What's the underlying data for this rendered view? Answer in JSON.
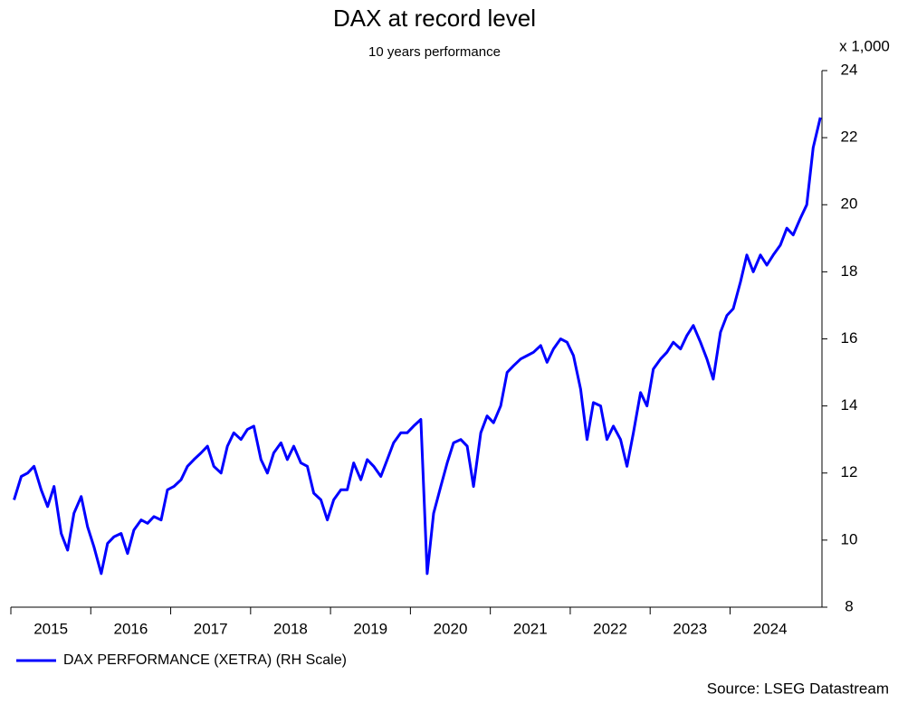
{
  "chart_data": {
    "type": "line",
    "title": "DAX at record level",
    "subtitle": "10 years performance",
    "y_unit_label": "x 1,000",
    "source": "Source: LSEG Datastream",
    "x": [
      2015.04,
      2015.13,
      2015.21,
      2015.29,
      2015.38,
      2015.46,
      2015.54,
      2015.63,
      2015.71,
      2015.79,
      2015.88,
      2015.96,
      2016.04,
      2016.13,
      2016.21,
      2016.29,
      2016.38,
      2016.46,
      2016.54,
      2016.63,
      2016.71,
      2016.79,
      2016.88,
      2016.96,
      2017.04,
      2017.13,
      2017.21,
      2017.29,
      2017.38,
      2017.46,
      2017.54,
      2017.63,
      2017.71,
      2017.79,
      2017.88,
      2017.96,
      2018.04,
      2018.13,
      2018.21,
      2018.29,
      2018.38,
      2018.46,
      2018.54,
      2018.63,
      2018.71,
      2018.79,
      2018.88,
      2018.96,
      2019.04,
      2019.13,
      2019.21,
      2019.29,
      2019.38,
      2019.46,
      2019.54,
      2019.63,
      2019.71,
      2019.79,
      2019.88,
      2019.96,
      2020.04,
      2020.13,
      2020.21,
      2020.29,
      2020.38,
      2020.46,
      2020.54,
      2020.63,
      2020.71,
      2020.79,
      2020.88,
      2020.96,
      2021.04,
      2021.13,
      2021.21,
      2021.29,
      2021.38,
      2021.46,
      2021.54,
      2021.63,
      2021.71,
      2021.79,
      2021.88,
      2021.96,
      2022.04,
      2022.13,
      2022.21,
      2022.29,
      2022.38,
      2022.46,
      2022.54,
      2022.63,
      2022.71,
      2022.79,
      2022.88,
      2022.96,
      2023.04,
      2023.13,
      2023.21,
      2023.29,
      2023.38,
      2023.46,
      2023.54,
      2023.63,
      2023.71,
      2023.79,
      2023.88,
      2023.96,
      2024.04,
      2024.13,
      2024.21,
      2024.29,
      2024.38,
      2024.46,
      2024.54,
      2024.63,
      2024.71,
      2024.79,
      2024.88,
      2024.96,
      2025.04,
      2025.13
    ],
    "series": [
      {
        "name": "DAX PERFORMANCE (XETRA) (RH Scale)",
        "color": "#0000ff",
        "values": [
          11.2,
          11.9,
          12.0,
          12.2,
          11.5,
          11.0,
          11.6,
          10.2,
          9.7,
          10.8,
          11.3,
          10.4,
          9.8,
          9.0,
          9.9,
          10.1,
          10.2,
          9.6,
          10.3,
          10.6,
          10.5,
          10.7,
          10.6,
          11.5,
          11.6,
          11.8,
          12.2,
          12.4,
          12.6,
          12.8,
          12.2,
          12.0,
          12.8,
          13.2,
          13.0,
          13.3,
          13.4,
          12.4,
          12.0,
          12.6,
          12.9,
          12.4,
          12.8,
          12.3,
          12.2,
          11.4,
          11.2,
          10.6,
          11.2,
          11.5,
          11.5,
          12.3,
          11.8,
          12.4,
          12.2,
          11.9,
          12.4,
          12.9,
          13.2,
          13.2,
          13.4,
          13.6,
          9.0,
          10.8,
          11.6,
          12.3,
          12.9,
          13.0,
          12.8,
          11.6,
          13.2,
          13.7,
          13.5,
          14.0,
          15.0,
          15.2,
          15.4,
          15.5,
          15.6,
          15.8,
          15.3,
          15.7,
          16.0,
          15.9,
          15.5,
          14.5,
          13.0,
          14.1,
          14.0,
          13.0,
          13.4,
          13.0,
          12.2,
          13.2,
          14.4,
          14.0,
          15.1,
          15.4,
          15.6,
          15.9,
          15.7,
          16.1,
          16.4,
          15.9,
          15.4,
          14.8,
          16.2,
          16.7,
          16.9,
          17.7,
          18.5,
          18.0,
          18.5,
          18.2,
          18.5,
          18.8,
          19.3,
          19.1,
          19.6,
          20.0,
          21.7,
          22.6
        ]
      }
    ],
    "xlim": [
      2015.0,
      2025.15
    ],
    "xticks": [
      2015,
      2016,
      2017,
      2018,
      2019,
      2020,
      2021,
      2022,
      2023,
      2024
    ],
    "ylim": [
      8,
      24
    ],
    "yticks": [
      8,
      10,
      12,
      14,
      16,
      18,
      20,
      22,
      24
    ]
  }
}
